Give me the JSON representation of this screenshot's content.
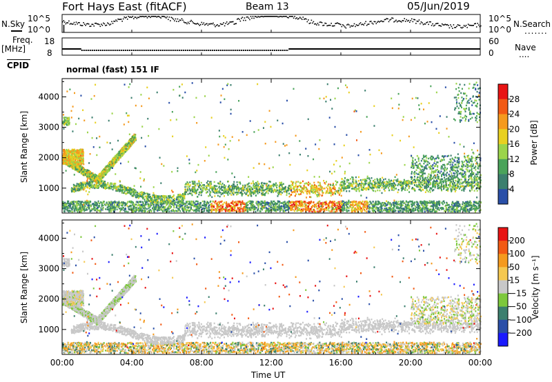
{
  "header": {
    "title": "Fort Hays East (fitACF)",
    "beam": "Beam 13",
    "date": "05/Jun/2019"
  },
  "top_panels": {
    "nsky_label": "N.Sky",
    "nsky_ticks": [
      "10^5",
      "10^0"
    ],
    "nsearch_label": "N.Search",
    "nsearch_ticks": [
      "10^5",
      "10^0"
    ],
    "freq_label": "Freq.",
    "freq_unit": "[MHz]",
    "freq_ticks": [
      "18",
      "8"
    ],
    "nave_label": "Nave",
    "nave_ticks": [
      "60",
      "0"
    ],
    "cpid_label": "CPID",
    "cpid_text": "normal (fast) 151 IF"
  },
  "colors": {
    "power_scale": [
      "#1a1aff",
      "#2a4fa8",
      "#3c7f6e",
      "#4aa35a",
      "#9bd44a",
      "#e8d020",
      "#f59a1e",
      "#f25a14",
      "#e81414"
    ],
    "velocity_scale": [
      "#1a1aff",
      "#2a4fa8",
      "#3c7f6e",
      "#7dc83c",
      "#c8c8c8",
      "#f5c850",
      "#f59a1e",
      "#f25a14",
      "#e81414"
    ]
  },
  "chart_data": [
    {
      "type": "heatmap",
      "title": "",
      "xlabel": "Time UT",
      "ylabel": "Slant Range [km]",
      "x_tick_labels": [
        "00:00",
        "04:00",
        "08:00",
        "12:00",
        "16:00",
        "20:00",
        "00:00"
      ],
      "y_tick_labels": [
        "1000",
        "2000",
        "3000",
        "4000"
      ],
      "xlim": [
        0,
        24
      ],
      "ylim": [
        180,
        4600
      ],
      "colorbar_label": "Power [dB]",
      "colorbar_ticks": [
        "4",
        "8",
        "12",
        "16",
        "20",
        "24",
        "28"
      ],
      "colorbar_range": [
        0,
        30
      ]
    },
    {
      "type": "heatmap",
      "title": "",
      "xlabel": "Time UT",
      "ylabel": "Slant Range [km]",
      "x_tick_labels": [
        "00:00",
        "04:00",
        "08:00",
        "12:00",
        "16:00",
        "20:00",
        "00:00"
      ],
      "y_tick_labels": [
        "1000",
        "2000",
        "3000",
        "4000"
      ],
      "xlim": [
        0,
        24
      ],
      "ylim": [
        180,
        4600
      ],
      "colorbar_label": "Velocity [m s⁻¹]",
      "colorbar_ticks": [
        "200",
        "100",
        "50",
        "15",
        "−15",
        "−50",
        "−100",
        "−200"
      ],
      "colorbar_range": [
        -250,
        250
      ]
    }
  ]
}
